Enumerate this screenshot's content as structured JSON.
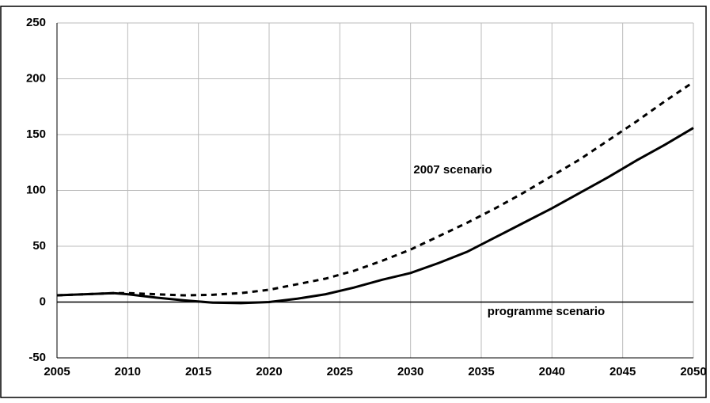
{
  "chart_data": {
    "type": "line",
    "x": [
      2005,
      2007,
      2009,
      2010,
      2012,
      2014,
      2016,
      2018,
      2020,
      2022,
      2024,
      2026,
      2028,
      2030,
      2032,
      2034,
      2036,
      2038,
      2040,
      2042,
      2044,
      2046,
      2048,
      2050
    ],
    "series": [
      {
        "name": "2007 scenario",
        "color": "#000000",
        "dash": true,
        "values": [
          6,
          7,
          8,
          8,
          7,
          6,
          6.5,
          8,
          11,
          16,
          21,
          28,
          37,
          47,
          59,
          71,
          84,
          98,
          113,
          128,
          145,
          162,
          180,
          197
        ]
      },
      {
        "name": "programme scenario",
        "color": "#000000",
        "dash": false,
        "values": [
          6,
          7,
          8,
          7,
          4,
          1.5,
          -0.5,
          -1,
          0,
          3,
          7,
          13,
          20,
          26,
          35,
          45,
          58,
          71,
          84,
          98,
          112,
          127,
          141,
          156
        ]
      }
    ],
    "xlim": [
      2005,
      2050
    ],
    "xticks": [
      2005,
      2010,
      2015,
      2020,
      2025,
      2030,
      2035,
      2040,
      2045,
      2050
    ],
    "ylim": [
      -50,
      250
    ],
    "yticks": [
      -50,
      0,
      50,
      100,
      150,
      200,
      250
    ],
    "grid": true
  }
}
